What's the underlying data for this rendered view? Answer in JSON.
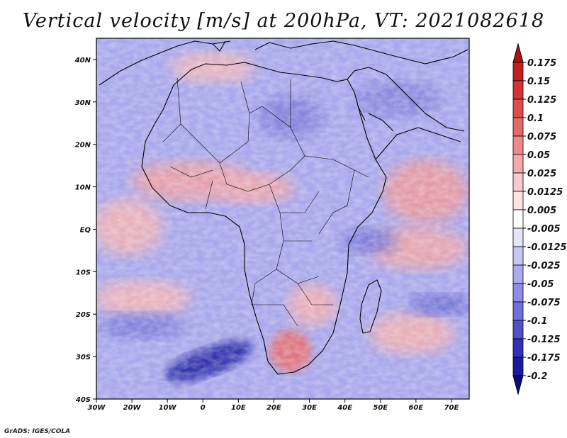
{
  "title": "Vertical velocity [m/s] at 200hPa, VT: 2021082618",
  "credit": "GrADS: IGES/COLA",
  "map": {
    "region": "Africa and surrounding oceans",
    "lon_range": [
      -30,
      75
    ],
    "lat_range": [
      -40,
      45
    ],
    "x_ticks": [
      "30W",
      "20W",
      "10W",
      "0",
      "10E",
      "20E",
      "30E",
      "40E",
      "50E",
      "60E",
      "70E"
    ],
    "x_tick_values": [
      -30,
      -20,
      -10,
      0,
      10,
      20,
      30,
      40,
      50,
      60,
      70
    ],
    "y_ticks": [
      "40N",
      "30N",
      "20N",
      "10N",
      "EQ",
      "10S",
      "20S",
      "30S",
      "40S"
    ],
    "y_tick_values": [
      40,
      30,
      20,
      10,
      0,
      -10,
      -20,
      -30,
      -40
    ]
  },
  "colorbar": {
    "labels": [
      "0.175",
      "0.15",
      "0.125",
      "0.1",
      "0.075",
      "0.05",
      "0.025",
      "0.0125",
      "0.005",
      "-0.005",
      "-0.0125",
      "-0.025",
      "-0.05",
      "-0.075",
      "-0.1",
      "-0.125",
      "-0.175",
      "-0.2"
    ],
    "colors": [
      "#b01010",
      "#c52020",
      "#d33333",
      "#de4c4c",
      "#e76a6a",
      "#ee8a8a",
      "#f4aaaa",
      "#f9c8c8",
      "#fce2e2",
      "#ffffff",
      "#e4e4fa",
      "#c8c8f4",
      "#aaaaee",
      "#8e8ee6",
      "#7070dd",
      "#5050cc",
      "#3030b8",
      "#1a1a9e",
      "#0b0b85"
    ]
  }
}
